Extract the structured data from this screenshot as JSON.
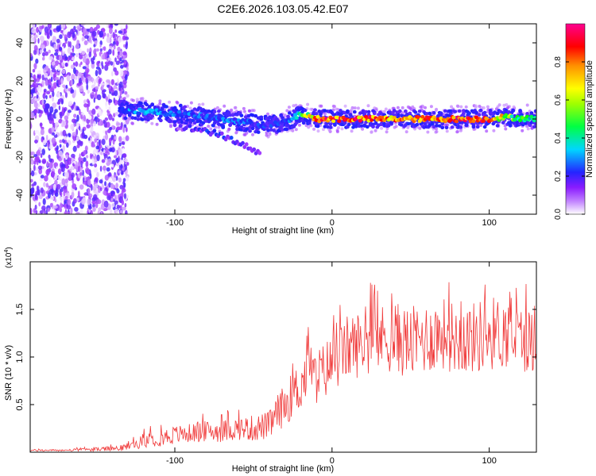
{
  "figure_title": "C2E6.2026.103.05.42.E07",
  "chart_data": [
    {
      "type": "heatmap",
      "title": "C2E6.2026.103.05.42.E07",
      "xlabel": "Height of straight line (km)",
      "ylabel": "Frequency (Hz)",
      "xlim": [
        -192,
        130
      ],
      "ylim": [
        -50,
        50
      ],
      "xticks": [
        -100,
        0,
        100
      ],
      "yticks": [
        -40,
        -20,
        0,
        20,
        40
      ],
      "colorbar": {
        "label": "Normalized spectral amplitude",
        "range": [
          0,
          1
        ],
        "ticks": [
          0.0,
          0.2,
          0.4,
          0.6,
          0.8
        ],
        "tick_labels": [
          "0.0",
          "0.2",
          "0.4",
          "0.6",
          "0.8"
        ],
        "stops": [
          "#ffffff",
          "#9c33ff",
          "#2020ff",
          "#00e5ff",
          "#00ff00",
          "#ffff00",
          "#ff8000",
          "#ff0000",
          "#ff0090"
        ]
      },
      "noise_region": {
        "x": [
          -192,
          -130
        ],
        "y": [
          -50,
          50
        ],
        "amplitude": 0.1
      },
      "signal_track": {
        "x": [
          -135,
          -120,
          -100,
          -80,
          -60,
          -45,
          -35,
          -25,
          -20,
          -10,
          0,
          20,
          40,
          60,
          80,
          100,
          110,
          130
        ],
        "frequency": [
          5,
          4,
          3,
          1,
          -1,
          -3,
          -3,
          0,
          3,
          0,
          0,
          0,
          0,
          0,
          0,
          0,
          1,
          0
        ],
        "amplitude": [
          0.3,
          0.35,
          0.3,
          0.3,
          0.3,
          0.25,
          0.25,
          0.35,
          0.45,
          0.8,
          0.9,
          0.85,
          0.8,
          0.85,
          0.85,
          0.9,
          0.6,
          0.4
        ]
      },
      "secondary_track": {
        "x": [
          -100,
          -80,
          -60,
          -50,
          -45
        ],
        "frequency": [
          -4,
          -6,
          -12,
          -16,
          -20
        ],
        "amplitude": [
          0.15,
          0.2,
          0.2,
          0.15,
          0.1
        ]
      }
    },
    {
      "type": "line",
      "xlabel": "Height of straight line (km)",
      "ylabel": "SNR (10 * v/v)",
      "y_multiplier": "(x10",
      "y_multiplier_exp": "4",
      "y_multiplier_close": ")",
      "xlim": [
        -192,
        130
      ],
      "ylim": [
        0,
        2.0
      ],
      "xticks": [
        -100,
        0,
        100
      ],
      "yticks": [
        0.5,
        1.0,
        1.5
      ],
      "ytick_labels": [
        "0.5",
        "1.0",
        "1.5"
      ],
      "color": "#f03a3a",
      "series": [
        {
          "name": "SNR",
          "x": [
            -192,
            -170,
            -150,
            -135,
            -125,
            -120,
            -110,
            -100,
            -90,
            -80,
            -70,
            -60,
            -50,
            -40,
            -35,
            -30,
            -25,
            -20,
            -17,
            -15,
            -12,
            -10,
            -5,
            0,
            5,
            10,
            20,
            30,
            40,
            50,
            60,
            70,
            80,
            90,
            100,
            110,
            120,
            130
          ],
          "y": [
            0.02,
            0.02,
            0.03,
            0.04,
            0.08,
            0.12,
            0.15,
            0.18,
            0.2,
            0.22,
            0.22,
            0.25,
            0.25,
            0.28,
            0.4,
            0.5,
            0.6,
            0.7,
            0.8,
            1.1,
            0.75,
            0.8,
            0.85,
            0.95,
            1.0,
            1.1,
            1.15,
            1.2,
            1.2,
            1.15,
            1.2,
            1.25,
            1.2,
            1.2,
            1.25,
            1.25,
            1.2,
            1.15
          ],
          "spread": [
            0.01,
            0.01,
            0.02,
            0.03,
            0.05,
            0.07,
            0.09,
            0.1,
            0.1,
            0.11,
            0.12,
            0.12,
            0.14,
            0.15,
            0.2,
            0.22,
            0.25,
            0.28,
            0.3,
            0.3,
            0.3,
            0.3,
            0.3,
            0.32,
            0.32,
            0.35,
            0.35,
            0.35,
            0.38,
            0.38,
            0.38,
            0.38,
            0.38,
            0.38,
            0.4,
            0.38,
            0.35,
            0.35
          ]
        }
      ]
    }
  ]
}
